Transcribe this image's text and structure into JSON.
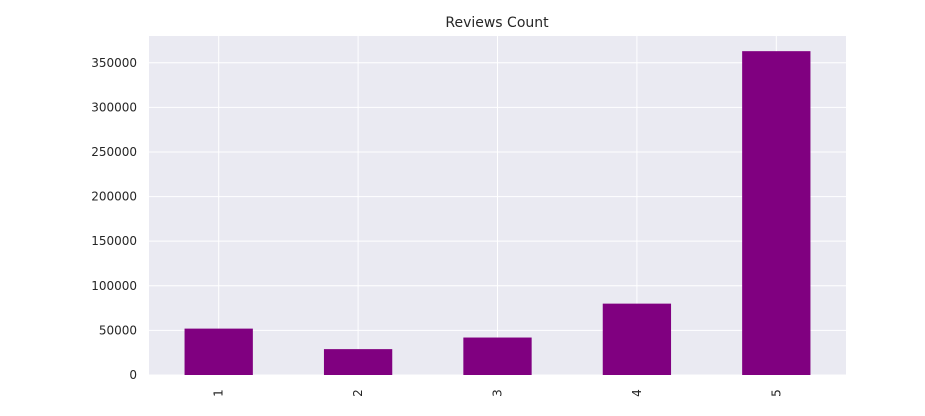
{
  "chart_data": {
    "type": "bar",
    "title": "Reviews Count",
    "xlabel": "",
    "ylabel": "",
    "categories": [
      "1",
      "2",
      "3",
      "4",
      "5"
    ],
    "values": [
      52000,
      29000,
      42000,
      80000,
      363000
    ],
    "ylim": [
      0,
      380000
    ],
    "yticks": [
      0,
      50000,
      100000,
      150000,
      200000,
      250000,
      300000,
      350000
    ],
    "ytick_labels": [
      "0",
      "50000",
      "100000",
      "150000",
      "200000",
      "250000",
      "300000",
      "350000"
    ],
    "xtick_rotation": "vertical",
    "grid": true,
    "legend": "none",
    "colors": {
      "bar": "#800080",
      "plot_background": "#eaeaf2",
      "grid": "#ffffff"
    }
  }
}
